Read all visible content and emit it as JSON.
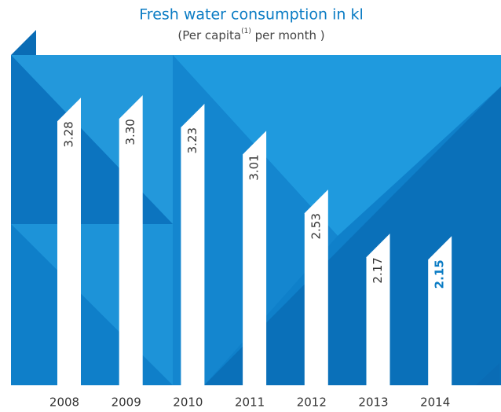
{
  "chart_data": {
    "type": "bar",
    "title": "Fresh water consumption in kl",
    "subtitle": [
      "(Per capita",
      "(1)",
      " per month )"
    ],
    "categories": [
      "2008",
      "2009",
      "2010",
      "2011",
      "2012",
      "2013",
      "2014"
    ],
    "values": [
      3.28,
      3.3,
      3.23,
      3.01,
      2.53,
      2.17,
      2.15
    ],
    "value_labels": [
      "3.28",
      "3.30",
      "3.23",
      "3.01",
      "2.53",
      "2.17",
      "2.15"
    ],
    "color": "#ffffff",
    "label_color": "#333333",
    "highlight_index": 6,
    "highlight_color": "#0b7cc4",
    "ylim": [
      0.9,
      3.5
    ]
  }
}
